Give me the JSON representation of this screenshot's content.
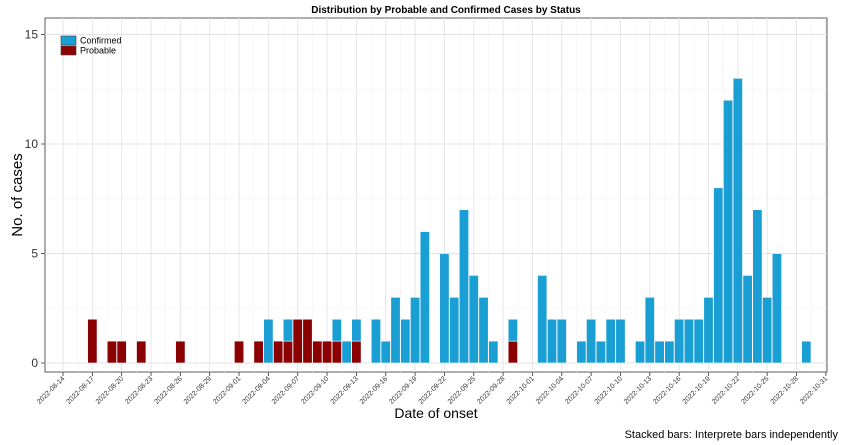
{
  "chart_data": {
    "type": "bar",
    "stacked": true,
    "title": "Distribution by Probable and Confirmed Cases by Status",
    "xlabel": "Date of onset",
    "ylabel": "No. of cases",
    "caption": "Stacked bars: Interprete bars independently",
    "ylim": [
      0,
      15
    ],
    "yticks": [
      0,
      5,
      10,
      15
    ],
    "grid": true,
    "legend_position": "top-left",
    "x_start": "2022-08-14",
    "x_end": "2022-10-31",
    "x_tick_labels": [
      "2022-08-14",
      "2022-08-17",
      "2022-08-20",
      "2022-08-23",
      "2022-08-26",
      "2022-08-29",
      "2022-09-01",
      "2022-09-04",
      "2022-09-07",
      "2022-09-10",
      "2022-09-13",
      "2022-09-16",
      "2022-09-19",
      "2022-09-22",
      "2022-09-25",
      "2022-09-28",
      "2022-10-01",
      "2022-10-04",
      "2022-10-07",
      "2022-10-10",
      "2022-10-13",
      "2022-10-16",
      "2022-10-19",
      "2022-10-22",
      "2022-10-25",
      "2022-10-28",
      "2022-10-31"
    ],
    "series": [
      {
        "name": "Confirmed",
        "color": "#1a9fd4",
        "points": [
          {
            "x": "2022-09-04",
            "y": 2
          },
          {
            "x": "2022-09-06",
            "y": 1
          },
          {
            "x": "2022-09-11",
            "y": 1
          },
          {
            "x": "2022-09-12",
            "y": 1
          },
          {
            "x": "2022-09-13",
            "y": 1
          },
          {
            "x": "2022-09-15",
            "y": 2
          },
          {
            "x": "2022-09-16",
            "y": 1
          },
          {
            "x": "2022-09-17",
            "y": 3
          },
          {
            "x": "2022-09-18",
            "y": 2
          },
          {
            "x": "2022-09-19",
            "y": 3
          },
          {
            "x": "2022-09-20",
            "y": 6
          },
          {
            "x": "2022-09-22",
            "y": 5
          },
          {
            "x": "2022-09-23",
            "y": 3
          },
          {
            "x": "2022-09-24",
            "y": 7
          },
          {
            "x": "2022-09-25",
            "y": 4
          },
          {
            "x": "2022-09-26",
            "y": 3
          },
          {
            "x": "2022-09-27",
            "y": 1
          },
          {
            "x": "2022-09-29",
            "y": 1
          },
          {
            "x": "2022-10-02",
            "y": 4
          },
          {
            "x": "2022-10-03",
            "y": 2
          },
          {
            "x": "2022-10-04",
            "y": 2
          },
          {
            "x": "2022-10-06",
            "y": 1
          },
          {
            "x": "2022-10-07",
            "y": 2
          },
          {
            "x": "2022-10-08",
            "y": 1
          },
          {
            "x": "2022-10-09",
            "y": 2
          },
          {
            "x": "2022-10-10",
            "y": 2
          },
          {
            "x": "2022-10-12",
            "y": 1
          },
          {
            "x": "2022-10-13",
            "y": 3
          },
          {
            "x": "2022-10-14",
            "y": 1
          },
          {
            "x": "2022-10-15",
            "y": 1
          },
          {
            "x": "2022-10-16",
            "y": 2
          },
          {
            "x": "2022-10-17",
            "y": 2
          },
          {
            "x": "2022-10-18",
            "y": 2
          },
          {
            "x": "2022-10-19",
            "y": 3
          },
          {
            "x": "2022-10-20",
            "y": 8
          },
          {
            "x": "2022-10-21",
            "y": 12
          },
          {
            "x": "2022-10-22",
            "y": 13
          },
          {
            "x": "2022-10-23",
            "y": 4
          },
          {
            "x": "2022-10-24",
            "y": 7
          },
          {
            "x": "2022-10-25",
            "y": 3
          },
          {
            "x": "2022-10-26",
            "y": 5
          },
          {
            "x": "2022-10-29",
            "y": 1
          }
        ]
      },
      {
        "name": "Probable",
        "color": "#8b0000",
        "points": [
          {
            "x": "2022-08-17",
            "y": 2
          },
          {
            "x": "2022-08-19",
            "y": 1
          },
          {
            "x": "2022-08-20",
            "y": 1
          },
          {
            "x": "2022-08-22",
            "y": 1
          },
          {
            "x": "2022-08-26",
            "y": 1
          },
          {
            "x": "2022-09-01",
            "y": 1
          },
          {
            "x": "2022-09-03",
            "y": 1
          },
          {
            "x": "2022-09-05",
            "y": 1
          },
          {
            "x": "2022-09-06",
            "y": 1
          },
          {
            "x": "2022-09-07",
            "y": 2
          },
          {
            "x": "2022-09-08",
            "y": 2
          },
          {
            "x": "2022-09-09",
            "y": 1
          },
          {
            "x": "2022-09-10",
            "y": 1
          },
          {
            "x": "2022-09-11",
            "y": 1
          },
          {
            "x": "2022-09-13",
            "y": 1
          },
          {
            "x": "2022-09-29",
            "y": 1
          }
        ]
      }
    ]
  }
}
